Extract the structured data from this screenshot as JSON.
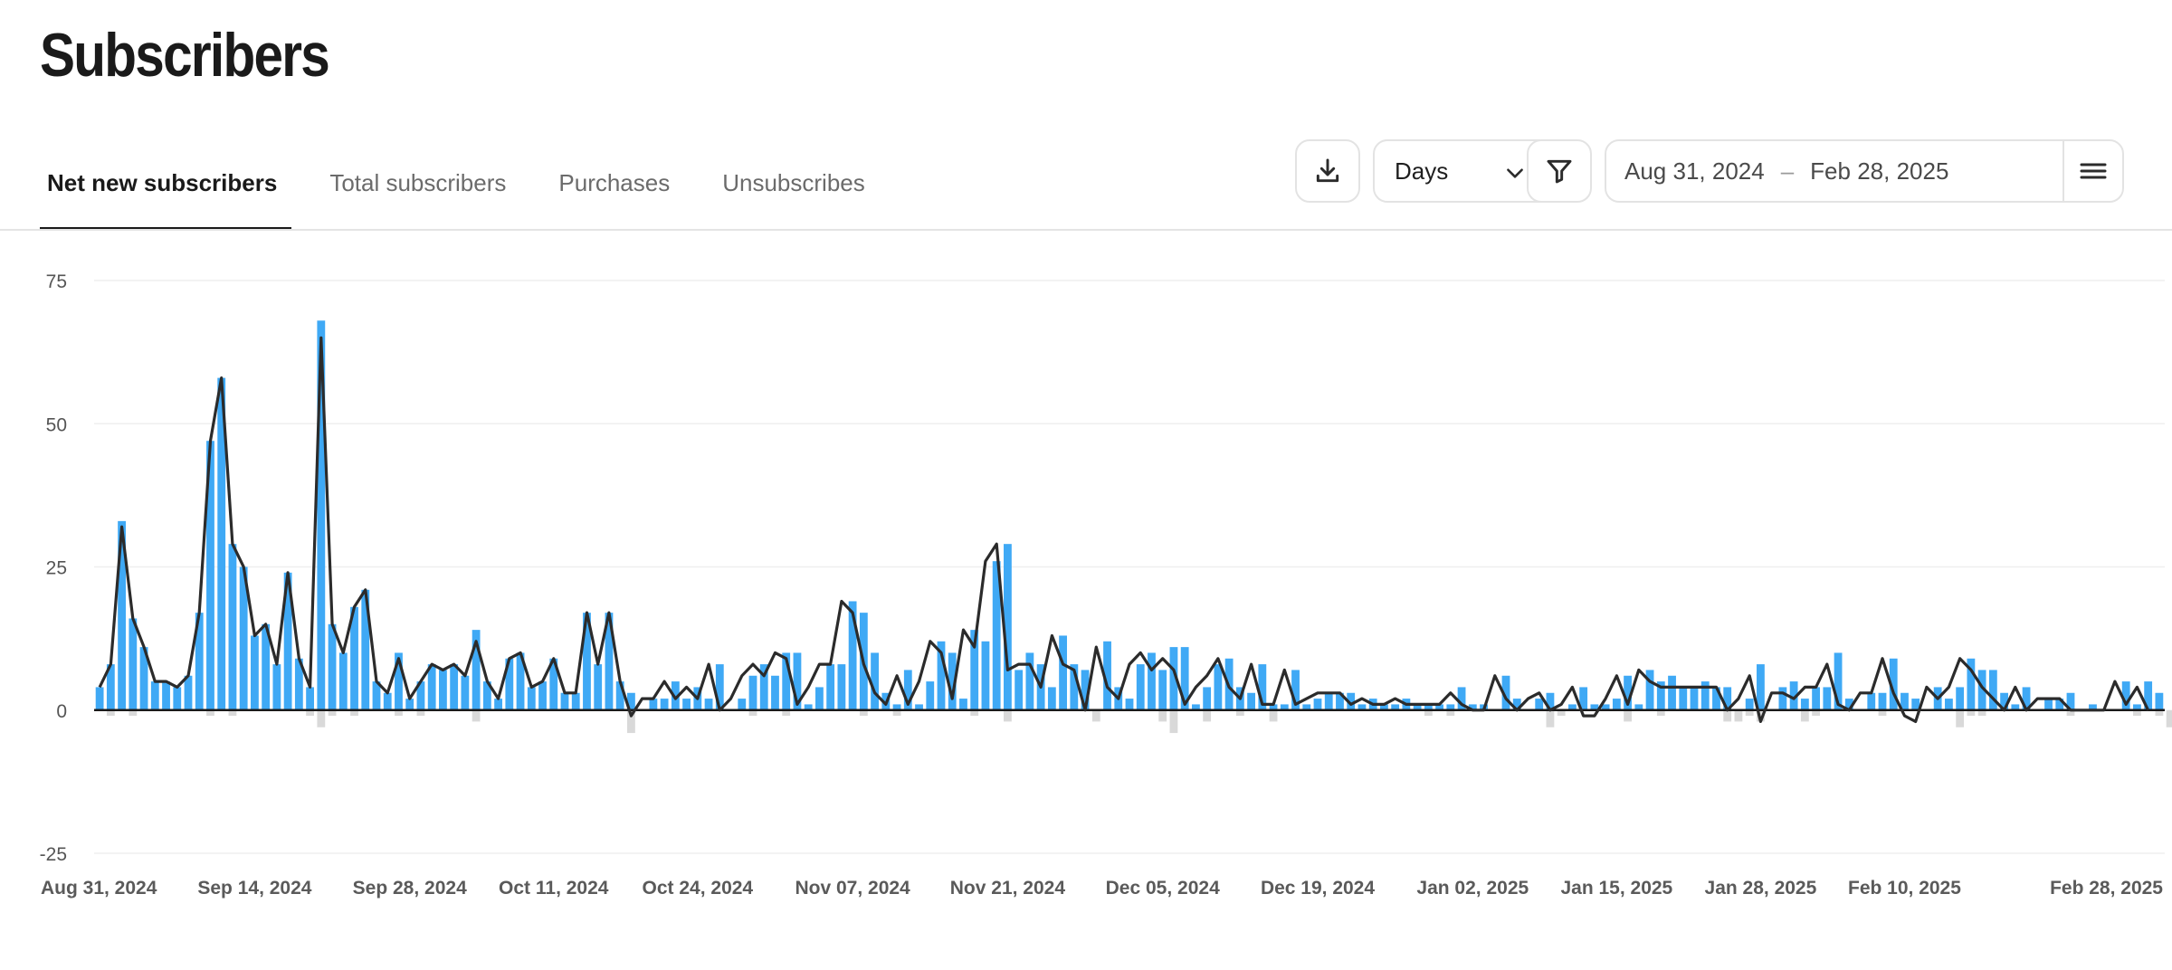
{
  "page": {
    "title": "Subscribers"
  },
  "tabs": [
    {
      "label": "Net new subscribers",
      "active": true
    },
    {
      "label": "Total subscribers",
      "active": false
    },
    {
      "label": "Purchases",
      "active": false
    },
    {
      "label": "Unsubscribes",
      "active": false
    }
  ],
  "controls": {
    "download_icon": "download-icon",
    "granularity": "Days",
    "filter_icon": "filter-icon",
    "date_start": "Aug 31, 2024",
    "date_separator": "–",
    "date_end": "Feb 28, 2025",
    "menu_icon": "menu-icon"
  },
  "colors": {
    "bar": "#3fa9f5",
    "negative_bar": "#d9d9d9",
    "line": "#2b2b2b",
    "grid": "#efefef"
  },
  "chart_data": {
    "type": "bar",
    "title": "",
    "xlabel": "",
    "ylabel": "",
    "ylim": [
      -25,
      75
    ],
    "yticks": [
      "75",
      "50",
      "25",
      "0",
      "-25"
    ],
    "xtick_labels": [
      "Aug 31, 2024",
      "Sep 14, 2024",
      "Sep 28, 2024",
      "Oct 11, 2024",
      "Oct 24, 2024",
      "Nov 07, 2024",
      "Nov 21, 2024",
      "Dec 05, 2024",
      "Dec 19, 2024",
      "Jan 02, 2025",
      "Jan 15, 2025",
      "Jan 28, 2025",
      "Feb 10, 2025",
      "Feb 28, 2025"
    ],
    "start_date": "2024-08-31",
    "end_date": "2025-02-28",
    "series": [
      {
        "values": [
          4,
          8,
          33,
          16,
          11,
          5,
          5,
          4,
          6,
          17,
          47,
          58,
          29,
          25,
          13,
          15,
          8,
          24,
          9,
          4,
          68,
          15,
          10,
          18,
          21,
          5,
          3,
          10,
          2,
          5,
          8,
          7,
          8,
          6,
          14,
          5,
          2,
          9,
          10,
          4,
          5,
          9,
          3,
          3,
          17,
          8,
          17,
          5,
          3,
          0,
          2,
          2,
          5,
          2,
          4,
          2,
          8,
          0,
          2,
          6,
          8,
          6,
          10,
          10,
          1,
          4,
          8,
          8,
          19,
          17,
          10,
          3,
          1,
          7,
          1,
          5,
          12,
          10,
          2,
          14,
          12,
          26,
          29,
          7,
          10,
          8,
          4,
          13,
          8,
          7,
          0,
          12,
          4,
          2,
          8,
          10,
          7,
          11,
          11,
          1,
          4,
          8,
          9,
          4,
          3,
          8,
          1,
          1,
          7,
          1,
          2,
          3,
          3,
          3,
          1,
          2,
          1,
          1,
          2,
          1,
          1,
          1,
          1,
          4,
          1,
          1,
          0,
          6,
          2,
          0,
          2,
          3,
          0,
          1,
          4,
          1,
          1,
          2,
          6,
          1,
          7,
          5,
          6,
          4,
          4,
          5,
          4,
          4,
          0,
          2,
          8,
          0,
          4,
          5,
          2,
          4,
          4,
          10,
          2,
          0,
          3,
          3,
          9,
          3,
          2,
          0,
          4,
          2,
          4,
          9,
          7,
          7,
          3,
          1,
          4,
          0,
          2,
          2,
          3,
          0,
          1,
          0,
          0,
          5,
          1,
          5,
          3
        ],
        "net": [
          4,
          8,
          32,
          16,
          11,
          5,
          5,
          4,
          6,
          17,
          47,
          58,
          29,
          25,
          13,
          15,
          8,
          24,
          9,
          4,
          65,
          15,
          10,
          18,
          21,
          5,
          3,
          9,
          2,
          5,
          8,
          7,
          8,
          6,
          12,
          5,
          2,
          9,
          10,
          4,
          5,
          9,
          3,
          3,
          17,
          8,
          17,
          5,
          -1,
          2,
          2,
          5,
          2,
          4,
          2,
          8,
          0,
          2,
          6,
          8,
          6,
          10,
          9,
          1,
          4,
          8,
          8,
          19,
          17,
          8,
          3,
          1,
          6,
          1,
          5,
          12,
          10,
          2,
          14,
          11,
          26,
          29,
          7,
          8,
          8,
          4,
          13,
          8,
          7,
          0,
          11,
          4,
          2,
          8,
          10,
          7,
          9,
          7,
          1,
          4,
          6,
          9,
          4,
          2,
          8,
          1,
          1,
          7,
          1,
          2,
          3,
          3,
          3,
          1,
          2,
          1,
          1,
          2,
          1,
          1,
          1,
          1,
          3,
          1,
          0,
          0,
          6,
          2,
          0,
          2,
          3,
          0,
          1,
          4,
          -1,
          -1,
          2,
          6,
          1,
          7,
          5,
          4,
          4,
          4,
          4,
          4,
          4,
          0,
          2,
          6,
          -2,
          3,
          3,
          2,
          4,
          4,
          8,
          1,
          0,
          3,
          3,
          9,
          3,
          -1,
          -2,
          4,
          2,
          4,
          9,
          7,
          4,
          2,
          0,
          4,
          0,
          2,
          2,
          2,
          0,
          0,
          0,
          0,
          5,
          1,
          4,
          0
        ],
        "negative": [
          0,
          -1,
          0,
          -1,
          0,
          0,
          0,
          0,
          0,
          0,
          -1,
          0,
          -1,
          0,
          0,
          0,
          0,
          0,
          0,
          -1,
          -3,
          -1,
          0,
          -1,
          0,
          0,
          0,
          -1,
          0,
          -1,
          0,
          0,
          0,
          0,
          -2,
          0,
          0,
          0,
          0,
          0,
          0,
          0,
          0,
          0,
          0,
          0,
          0,
          0,
          -4,
          0,
          0,
          0,
          0,
          0,
          0,
          0,
          0,
          0,
          0,
          -1,
          0,
          0,
          -1,
          0,
          0,
          0,
          0,
          0,
          0,
          -1,
          0,
          0,
          -1,
          0,
          0,
          0,
          0,
          0,
          0,
          -1,
          0,
          0,
          -2,
          0,
          0,
          0,
          0,
          0,
          0,
          0,
          -2,
          0,
          0,
          0,
          0,
          0,
          -2,
          -4,
          0,
          0,
          -2,
          0,
          0,
          -1,
          0,
          0,
          -2,
          0,
          0,
          0,
          0,
          0,
          0,
          0,
          0,
          0,
          0,
          0,
          0,
          0,
          -1,
          0,
          -1,
          0,
          0,
          0,
          0,
          0,
          0,
          0,
          0,
          -3,
          -1,
          0,
          0,
          0,
          0,
          0,
          -2,
          0,
          0,
          -1,
          0,
          0,
          0,
          0,
          0,
          -2,
          -2,
          -1,
          -2,
          0,
          0,
          0,
          -2,
          -1,
          0,
          0,
          0,
          0,
          0,
          -1,
          0,
          0,
          0,
          0,
          0,
          0,
          -3,
          -1,
          -1,
          0,
          0,
          0,
          0,
          0,
          0,
          0,
          -1,
          0,
          0,
          0,
          0,
          0,
          -1,
          0,
          -1,
          -3
        ]
      }
    ]
  }
}
